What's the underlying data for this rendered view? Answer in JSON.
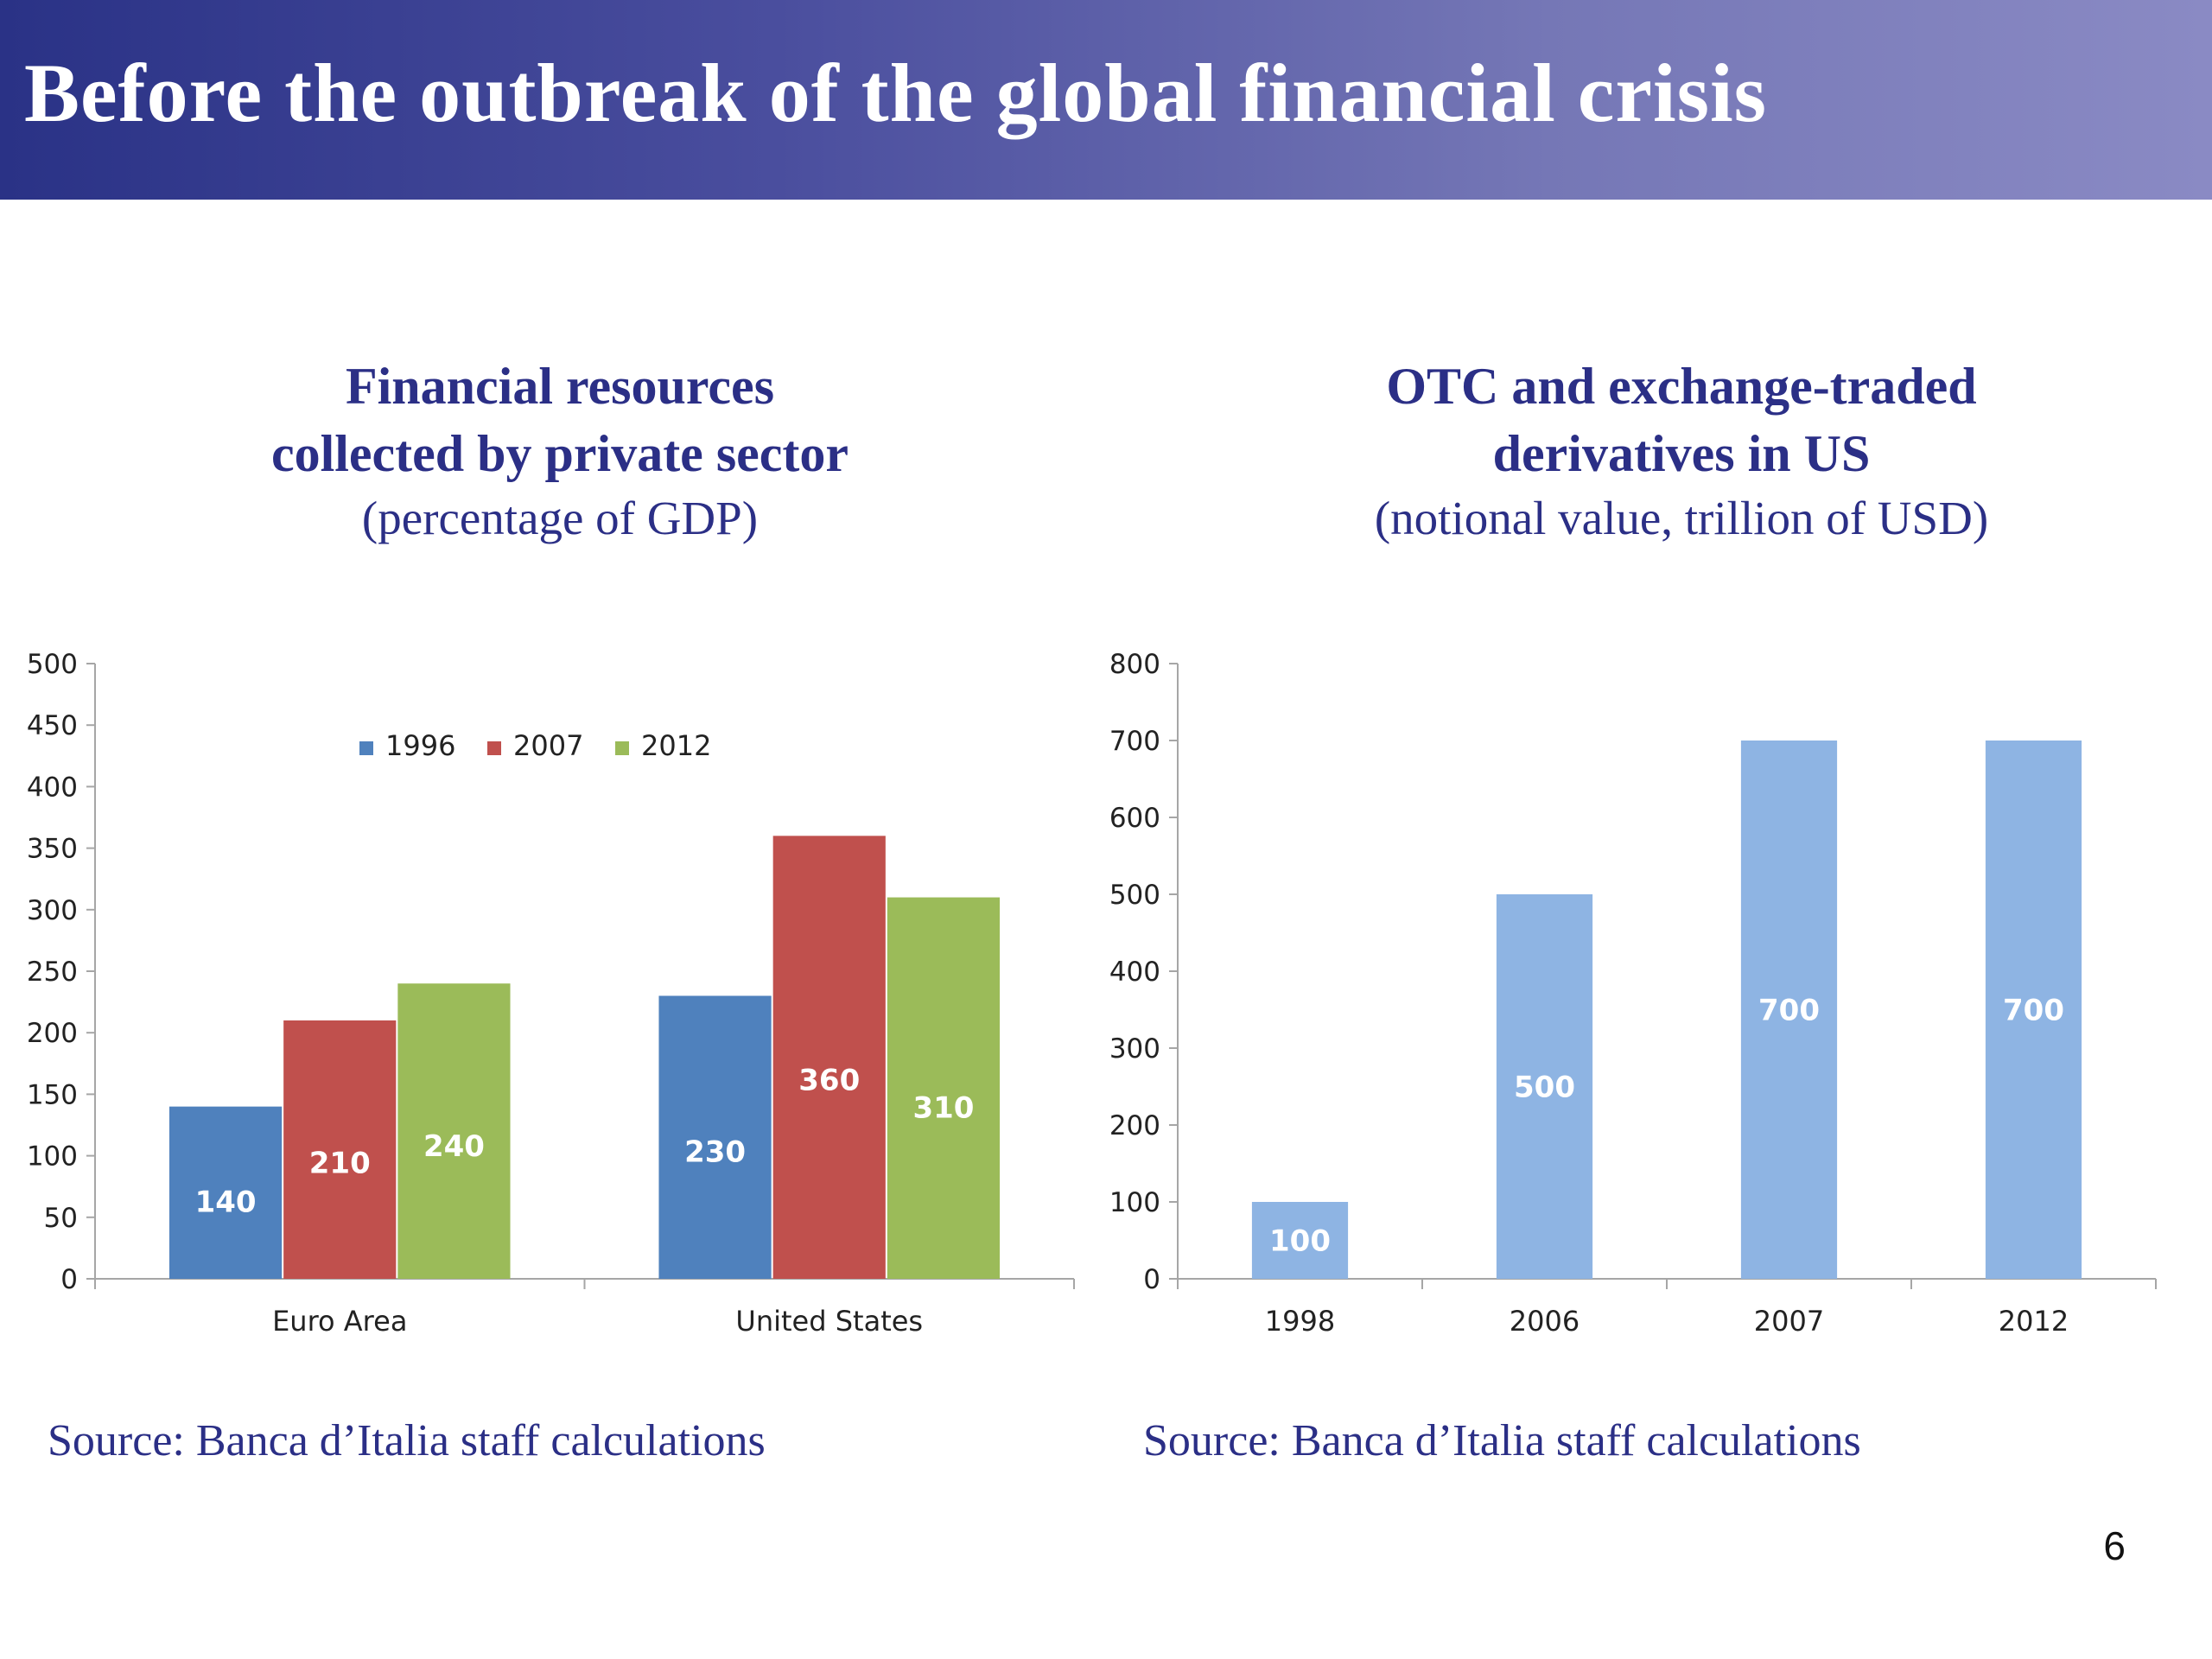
{
  "slide": {
    "title": "Before the outbreak of the global financial crisis",
    "page_number": "6"
  },
  "colors": {
    "title_bar_start": "#2a3286",
    "title_bar_end": "#8a8ac4",
    "heading_text": "#2b2f86"
  },
  "left_panel": {
    "title_line1": "Financial resources",
    "title_line2": "collected by private sector",
    "subtitle": "(percentage of GDP)",
    "source": "Source: Banca d’Italia staff calculations"
  },
  "right_panel": {
    "title_line1": "OTC and exchange-traded",
    "title_line2": "derivatives in US",
    "subtitle": "(notional value, trillion of USD)",
    "source": "Source: Banca d’Italia staff calculations"
  },
  "chart_data": [
    {
      "type": "bar",
      "title": "Financial resources collected by private sector",
      "subtitle": "(percentage of GDP)",
      "categories": [
        "Euro Area",
        "United States"
      ],
      "series": [
        {
          "name": "1996",
          "color": "#4f81bd",
          "values": [
            140,
            230
          ]
        },
        {
          "name": "2007",
          "color": "#c0504d",
          "values": [
            210,
            360
          ]
        },
        {
          "name": "2012",
          "color": "#9bbb59",
          "values": [
            240,
            310
          ]
        }
      ],
      "ylim": [
        0,
        500
      ],
      "yticks": [
        0,
        50,
        100,
        150,
        200,
        250,
        300,
        350,
        400,
        450,
        500
      ],
      "data_labels": true,
      "legend": "top",
      "grid": false
    },
    {
      "type": "bar",
      "title": "OTC and exchange-traded derivatives in US",
      "subtitle": "(notional value, trillion of USD)",
      "categories": [
        "1998",
        "2006",
        "2007",
        "2012"
      ],
      "series": [
        {
          "color": "#8eb4e3",
          "values": [
            100,
            500,
            700,
            700
          ]
        }
      ],
      "ylim": [
        0,
        800
      ],
      "yticks": [
        0,
        100,
        200,
        300,
        400,
        500,
        600,
        700,
        800
      ],
      "data_labels": true,
      "legend": "none",
      "grid": false
    }
  ]
}
